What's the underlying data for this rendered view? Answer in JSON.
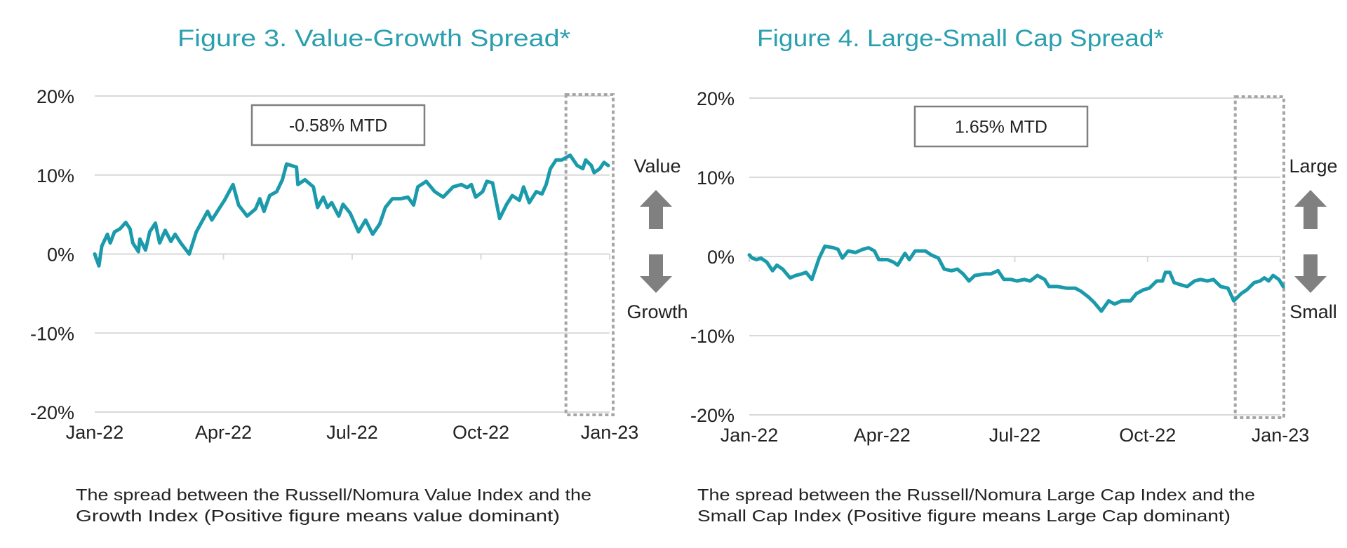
{
  "colors": {
    "line": "#1a9aaa",
    "title": "#2a9fae",
    "arrow": "#808080",
    "grid": "#d9d9d9"
  },
  "chart_data": [
    {
      "type": "line",
      "title": "Figure 3. Value-Growth Spread*",
      "annotation": "-0.58% MTD",
      "up_label": "Value",
      "down_label": "Growth",
      "caption": [
        "The spread between the Russell/Nomura Value Index and the",
        "Growth Index (Positive figure means value dominant)"
      ],
      "x_ticks": [
        "Jan-22",
        "Apr-22",
        "Jul-22",
        "Oct-22",
        "Jan-23"
      ],
      "y_ticks": [
        "20%",
        "10%",
        "0%",
        "-10%",
        "-20%"
      ],
      "ylim": [
        -20,
        20
      ],
      "xlim": [
        "2022-01-01",
        "2023-01-01"
      ],
      "grid": "horizontal",
      "highlight_range": [
        "2022-12-01",
        "2023-01-01"
      ],
      "x": [
        "2022-01-01",
        "2022-01-04",
        "2022-01-06",
        "2022-01-10",
        "2022-01-12",
        "2022-01-15",
        "2022-01-19",
        "2022-01-23",
        "2022-01-26",
        "2022-01-28",
        "2022-02-01",
        "2022-02-02",
        "2022-02-06",
        "2022-02-09",
        "2022-02-13",
        "2022-02-16",
        "2022-02-20",
        "2022-02-24",
        "2022-02-27",
        "2022-03-03",
        "2022-03-09",
        "2022-03-14",
        "2022-03-18",
        "2022-03-22",
        "2022-03-25",
        "2022-03-30",
        "2022-04-03",
        "2022-04-09",
        "2022-04-13",
        "2022-04-19",
        "2022-04-25",
        "2022-04-28",
        "2022-05-01",
        "2022-05-05",
        "2022-05-10",
        "2022-05-14",
        "2022-05-17",
        "2022-05-24",
        "2022-05-25",
        "2022-05-30",
        "2022-06-05",
        "2022-06-08",
        "2022-06-12",
        "2022-06-15",
        "2022-06-18",
        "2022-06-23",
        "2022-06-26",
        "2022-07-01",
        "2022-07-07",
        "2022-07-12",
        "2022-07-17",
        "2022-07-22",
        "2022-07-26",
        "2022-07-31",
        "2022-08-06",
        "2022-08-11",
        "2022-08-15",
        "2022-08-18",
        "2022-08-24",
        "2022-08-30",
        "2022-09-05",
        "2022-09-12",
        "2022-09-18",
        "2022-09-22",
        "2022-09-25",
        "2022-09-28",
        "2022-10-03",
        "2022-10-06",
        "2022-10-10",
        "2022-10-15",
        "2022-10-20",
        "2022-10-24",
        "2022-10-29",
        "2022-11-01",
        "2022-11-05",
        "2022-11-10",
        "2022-11-14",
        "2022-11-17",
        "2022-11-20",
        "2022-11-24",
        "2022-11-28",
        "2022-12-04",
        "2022-12-09",
        "2022-12-13",
        "2022-12-15",
        "2022-12-19",
        "2022-12-21",
        "2022-12-25",
        "2022-12-28",
        "2022-12-31"
      ],
      "values": [
        0,
        -1.5,
        1,
        2.5,
        1.4,
        2.8,
        3.2,
        4,
        3.2,
        1.4,
        0.3,
        1.9,
        0.5,
        2.8,
        3.9,
        1.4,
        3,
        1.6,
        2.5,
        1.4,
        0,
        2.8,
        4.1,
        5.4,
        4.3,
        5.7,
        6.8,
        8.8,
        6.2,
        4.8,
        5.7,
        7,
        5.4,
        7.4,
        7.9,
        9.4,
        11.4,
        11,
        8.8,
        9.4,
        8.5,
        5.9,
        7.2,
        5.9,
        6.5,
        4.8,
        6.3,
        5.2,
        2.8,
        4.3,
        2.5,
        3.8,
        5.9,
        7,
        7,
        7.2,
        6.2,
        8.5,
        9.2,
        7.9,
        7.2,
        8.5,
        8.8,
        8.4,
        8.8,
        7.2,
        7.9,
        9.2,
        9,
        4.5,
        6.3,
        7.4,
        6.8,
        8.5,
        6.5,
        7.9,
        7.6,
        8.8,
        10.8,
        11.9,
        11.9,
        12.5,
        11.2,
        10.8,
        11.9,
        11.2,
        10.3,
        10.8,
        11.6,
        11.2
      ]
    },
    {
      "type": "line",
      "title": "Figure 4. Large-Small Cap Spread*",
      "annotation": "1.65% MTD",
      "up_label": "Large",
      "down_label": "Small",
      "caption": [
        "The spread between the Russell/Nomura Large Cap Index and the",
        "Small Cap Index (Positive figure means Large Cap dominant)"
      ],
      "x_ticks": [
        "Jan-22",
        "Apr-22",
        "Jul-22",
        "Oct-22",
        "Jan-23"
      ],
      "y_ticks": [
        "20%",
        "10%",
        "0%",
        "-10%",
        "-20%"
      ],
      "ylim": [
        -20,
        20
      ],
      "xlim": [
        "2022-01-01",
        "2023-01-01"
      ],
      "grid": "horizontal",
      "highlight_range": [
        "2022-12-01",
        "2023-01-01"
      ],
      "x": [
        "2022-01-01",
        "2022-01-03",
        "2022-01-06",
        "2022-01-09",
        "2022-01-13",
        "2022-01-17",
        "2022-01-20",
        "2022-01-24",
        "2022-01-29",
        "2022-02-02",
        "2022-02-06",
        "2022-02-09",
        "2022-02-13",
        "2022-02-18",
        "2022-02-22",
        "2022-02-28",
        "2022-03-03",
        "2022-03-06",
        "2022-03-10",
        "2022-03-15",
        "2022-03-20",
        "2022-03-24",
        "2022-03-28",
        "2022-03-31",
        "2022-04-06",
        "2022-04-10",
        "2022-04-13",
        "2022-04-18",
        "2022-04-21",
        "2022-04-25",
        "2022-05-02",
        "2022-05-06",
        "2022-05-11",
        "2022-05-15",
        "2022-05-20",
        "2022-05-24",
        "2022-05-28",
        "2022-06-01",
        "2022-06-05",
        "2022-06-12",
        "2022-06-16",
        "2022-06-21",
        "2022-06-25",
        "2022-06-30",
        "2022-07-04",
        "2022-07-09",
        "2022-07-13",
        "2022-07-18",
        "2022-07-23",
        "2022-07-26",
        "2022-08-01",
        "2022-08-07",
        "2022-08-13",
        "2022-08-17",
        "2022-08-22",
        "2022-08-26",
        "2022-08-31",
        "2022-09-05",
        "2022-09-09",
        "2022-09-14",
        "2022-09-20",
        "2022-09-24",
        "2022-09-29",
        "2022-10-03",
        "2022-10-08",
        "2022-10-12",
        "2022-10-14",
        "2022-10-17",
        "2022-10-20",
        "2022-10-25",
        "2022-10-29",
        "2022-11-03",
        "2022-11-07",
        "2022-11-12",
        "2022-11-16",
        "2022-11-21",
        "2022-11-26",
        "2022-11-30",
        "2022-12-05",
        "2022-12-09",
        "2022-12-14",
        "2022-12-18",
        "2022-12-21",
        "2022-12-24",
        "2022-12-27",
        "2022-12-31",
        "2023-01-03"
      ],
      "values": [
        0.2,
        -0.2,
        -0.4,
        -0.2,
        -0.7,
        -1.8,
        -1.1,
        -1.6,
        -2.7,
        -2.4,
        -2.2,
        -2,
        -2.9,
        -0.2,
        1.3,
        1.1,
        0.9,
        -0.2,
        0.7,
        0.5,
        0.9,
        1.1,
        0.7,
        -0.4,
        -0.4,
        -0.7,
        -1.1,
        0.4,
        -0.4,
        0.7,
        0.7,
        0.2,
        -0.2,
        -1.6,
        -1.8,
        -1.6,
        -2.2,
        -3.1,
        -2.4,
        -2.2,
        -2.2,
        -1.8,
        -2.9,
        -2.9,
        -3.1,
        -2.9,
        -3.1,
        -2.4,
        -2.9,
        -3.8,
        -3.8,
        -4,
        -4,
        -4.4,
        -5.1,
        -5.8,
        -6.9,
        -5.6,
        -6,
        -5.6,
        -5.6,
        -4.7,
        -4.2,
        -4,
        -3.1,
        -3.1,
        -2,
        -2,
        -3.3,
        -3.6,
        -3.8,
        -3.1,
        -2.9,
        -3.1,
        -2.9,
        -3.8,
        -4,
        -5.6,
        -4.7,
        -4.2,
        -3.3,
        -3.1,
        -2.7,
        -3.1,
        -2.4,
        -2.9,
        -3.8
      ]
    }
  ]
}
